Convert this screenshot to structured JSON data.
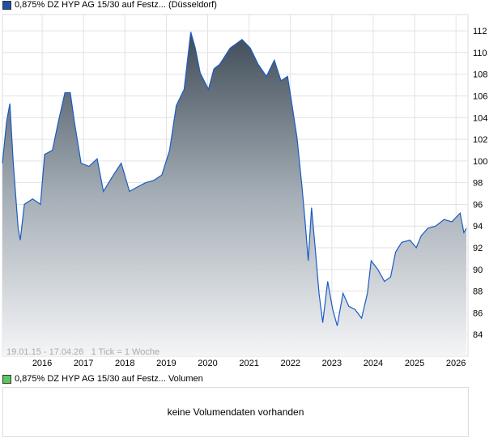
{
  "price_legend": {
    "label": "0,875% DZ HYP AG 15/30 auf Festz... (Düsseldorf)",
    "color": "#1f4fa8"
  },
  "volume_legend": {
    "label": "0,875% DZ HYP AG 15/30 auf Festz... Volumen",
    "color": "#5cc85c"
  },
  "volume_empty": "keine Volumendaten vorhanden",
  "chart_data": {
    "type": "area",
    "title": "0,875% DZ HYP AG 15/30 auf Festz... (Düsseldorf)",
    "info": "19.01.15 - 17.04.26   1 Tick = 1 Woche",
    "xlim": [
      2015.04,
      2026.29
    ],
    "ylim": [
      82,
      113.5
    ],
    "yticks": [
      84,
      86,
      88,
      90,
      92,
      94,
      96,
      98,
      100,
      102,
      104,
      106,
      108,
      110,
      112
    ],
    "xticks": [
      2016,
      2017,
      2018,
      2019,
      2020,
      2021,
      2022,
      2023,
      2024,
      2025,
      2026
    ],
    "grid": true,
    "line_color": "#1a5bc4",
    "x": [
      2015.04,
      2015.14,
      2015.22,
      2015.3,
      2015.42,
      2015.47,
      2015.57,
      2015.77,
      2015.96,
      2016.06,
      2016.25,
      2016.39,
      2016.55,
      2016.68,
      2016.78,
      2016.94,
      2017.13,
      2017.33,
      2017.48,
      2017.72,
      2017.91,
      2018.11,
      2018.3,
      2018.5,
      2018.69,
      2018.89,
      2019.08,
      2019.24,
      2019.43,
      2019.59,
      2019.7,
      2019.82,
      2020.02,
      2020.15,
      2020.29,
      2020.54,
      2020.83,
      2021.03,
      2021.22,
      2021.42,
      2021.61,
      2021.77,
      2021.93,
      2022.04,
      2022.16,
      2022.28,
      2022.35,
      2022.43,
      2022.51,
      2022.59,
      2022.69,
      2022.78,
      2022.9,
      2023.02,
      2023.13,
      2023.27,
      2023.41,
      2023.56,
      2023.72,
      2023.86,
      2023.95,
      2024.11,
      2024.27,
      2024.42,
      2024.54,
      2024.69,
      2024.89,
      2025.04,
      2025.16,
      2025.32,
      2025.51,
      2025.71,
      2025.9,
      2026.1,
      2026.19,
      2026.25
    ],
    "y": [
      99.8,
      103.6,
      105.3,
      99.9,
      93.8,
      92.7,
      96,
      96.5,
      96,
      100.6,
      101,
      103.6,
      106.3,
      106.3,
      103.6,
      99.8,
      99.5,
      100.2,
      97.2,
      98.7,
      99.8,
      97.2,
      97.6,
      98,
      98.2,
      98.7,
      101,
      105.1,
      106.6,
      111.9,
      110.4,
      108.1,
      106.6,
      108.5,
      108.9,
      110.4,
      111.2,
      110.4,
      108.9,
      107.8,
      109.3,
      107.4,
      107.8,
      105.1,
      102.1,
      97.6,
      94.6,
      90.8,
      95.7,
      92.3,
      87.8,
      85.1,
      88.9,
      86.3,
      84.8,
      87.8,
      86.6,
      86.3,
      85.5,
      87.8,
      90.8,
      90,
      88.9,
      89.3,
      91.6,
      92.5,
      92.7,
      92,
      93.1,
      93.8,
      94,
      94.6,
      94.4,
      95.2,
      93.4,
      93.8
    ]
  }
}
